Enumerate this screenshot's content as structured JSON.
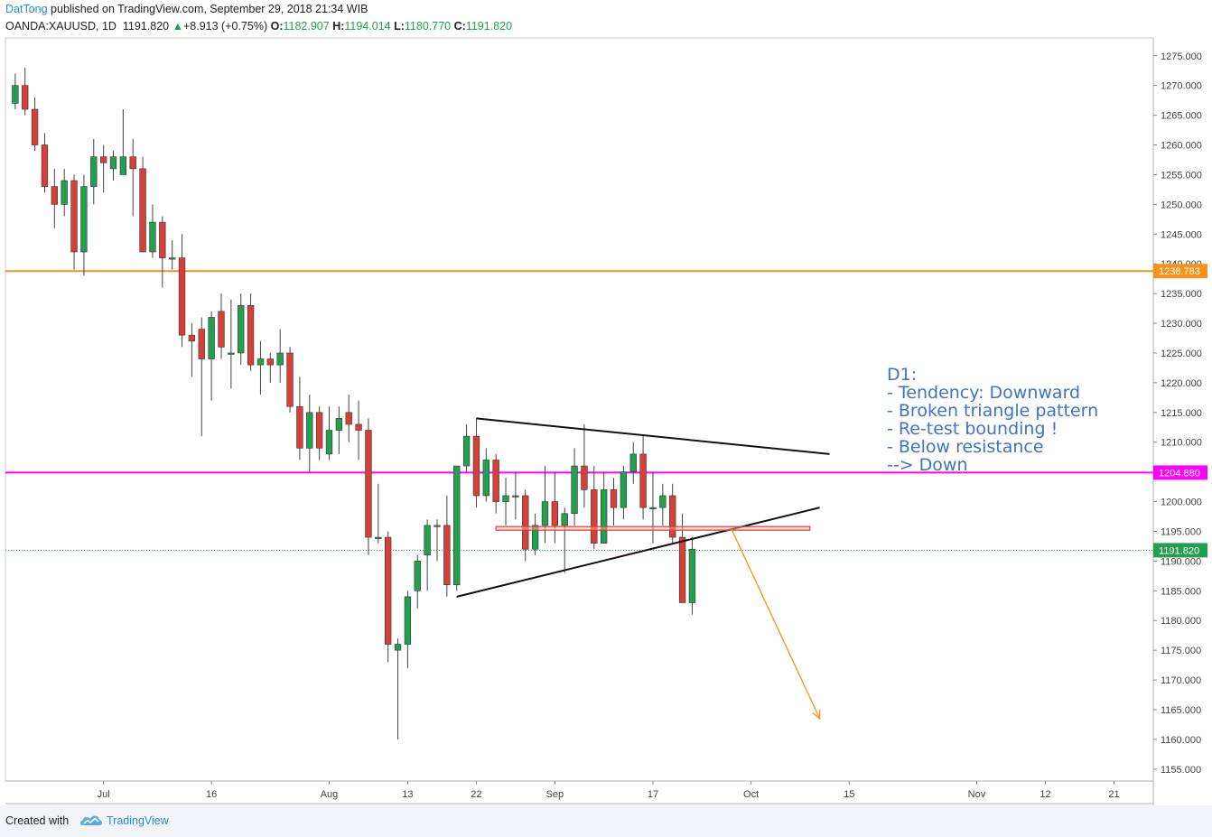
{
  "header": {
    "author": "DatTong",
    "published": " published on TradingView.com, September 29, 2018 21:34 WIB",
    "symbol": "OANDA:XAUUSD, 1D",
    "last": "1191.820",
    "change": "+8.913 (+0.75%)",
    "o_label": "O:",
    "o": "1182.907",
    "h_label": "H:",
    "h": "1194.014",
    "l_label": "L:",
    "l": "1180.770",
    "c_label": "C:",
    "c": "1191.820"
  },
  "footer": {
    "created": "Created with",
    "brand": "TradingView"
  },
  "annotation": {
    "lines": [
      "D1:",
      "- Tendency: Downward",
      "- Broken triangle pattern",
      "- Re-test bounding !",
      "- Below resistance",
      "--> Down"
    ],
    "color": "#3d73c6"
  },
  "colors": {
    "up": "#22a050",
    "down": "#d6403a",
    "orange_line": "#f7931a",
    "magenta_line": "#ff00ff",
    "last_price": "#22a050"
  },
  "chart_data": {
    "type": "candlestick",
    "title": "",
    "ylim": [
      1153,
      1278
    ],
    "y_ticks": [
      1155,
      1160,
      1165,
      1170,
      1175,
      1180,
      1185,
      1190,
      1195,
      1200,
      1205,
      1210,
      1215,
      1220,
      1225,
      1230,
      1235,
      1240,
      1245,
      1250,
      1255,
      1260,
      1265,
      1270,
      1275
    ],
    "x_ticks": [
      {
        "label": "Jul",
        "x": 9
      },
      {
        "label": "16",
        "x": 20
      },
      {
        "label": "Aug",
        "x": 32
      },
      {
        "label": "13",
        "x": 40
      },
      {
        "label": "22",
        "x": 47
      },
      {
        "label": "Sep",
        "x": 55
      },
      {
        "label": "17",
        "x": 65
      },
      {
        "label": "Oct",
        "x": 75
      },
      {
        "label": "15",
        "x": 85
      },
      {
        "label": "Nov",
        "x": 98
      },
      {
        "label": "12",
        "x": 105
      },
      {
        "label": "21",
        "x": 112
      }
    ],
    "x_range": [
      -1,
      116
    ],
    "candles": [
      {
        "x": 0,
        "o": 1267,
        "h": 1272,
        "l": 1266,
        "c": 1270
      },
      {
        "x": 1,
        "o": 1270,
        "h": 1273,
        "l": 1265,
        "c": 1266
      },
      {
        "x": 2,
        "o": 1266,
        "h": 1268,
        "l": 1259,
        "c": 1260
      },
      {
        "x": 3,
        "o": 1260,
        "h": 1262,
        "l": 1252,
        "c": 1253
      },
      {
        "x": 4,
        "o": 1253,
        "h": 1256,
        "l": 1246,
        "c": 1250
      },
      {
        "x": 5,
        "o": 1250,
        "h": 1256,
        "l": 1248,
        "c": 1254
      },
      {
        "x": 6,
        "o": 1254,
        "h": 1255,
        "l": 1239,
        "c": 1242
      },
      {
        "x": 7,
        "o": 1242,
        "h": 1255,
        "l": 1238,
        "c": 1253
      },
      {
        "x": 8,
        "o": 1253,
        "h": 1261,
        "l": 1250,
        "c": 1258
      },
      {
        "x": 9,
        "o": 1258,
        "h": 1260,
        "l": 1252,
        "c": 1257
      },
      {
        "x": 10,
        "o": 1256,
        "h": 1259,
        "l": 1254,
        "c": 1258
      },
      {
        "x": 11,
        "o": 1255,
        "h": 1266,
        "l": 1255,
        "c": 1258
      },
      {
        "x": 12,
        "o": 1258,
        "h": 1261,
        "l": 1248,
        "c": 1256
      },
      {
        "x": 13,
        "o": 1256,
        "h": 1258,
        "l": 1242,
        "c": 1242
      },
      {
        "x": 14,
        "o": 1242,
        "h": 1250,
        "l": 1241,
        "c": 1247
      },
      {
        "x": 15,
        "o": 1247,
        "h": 1248,
        "l": 1236,
        "c": 1241
      },
      {
        "x": 16,
        "o": 1241,
        "h": 1244,
        "l": 1239,
        "c": 1241
      },
      {
        "x": 17,
        "o": 1241,
        "h": 1245,
        "l": 1226,
        "c": 1228
      },
      {
        "x": 18,
        "o": 1228,
        "h": 1230,
        "l": 1221,
        "c": 1227
      },
      {
        "x": 19,
        "o": 1229,
        "h": 1231,
        "l": 1211,
        "c": 1224
      },
      {
        "x": 20,
        "o": 1224,
        "h": 1232,
        "l": 1217,
        "c": 1231
      },
      {
        "x": 21,
        "o": 1232,
        "h": 1235,
        "l": 1224,
        "c": 1226
      },
      {
        "x": 22,
        "o": 1225,
        "h": 1234,
        "l": 1219,
        "c": 1225
      },
      {
        "x": 23,
        "o": 1225,
        "h": 1235,
        "l": 1223,
        "c": 1233
      },
      {
        "x": 24,
        "o": 1233,
        "h": 1235,
        "l": 1222,
        "c": 1223
      },
      {
        "x": 25,
        "o": 1223,
        "h": 1227,
        "l": 1218,
        "c": 1224
      },
      {
        "x": 26,
        "o": 1224,
        "h": 1225,
        "l": 1220,
        "c": 1223
      },
      {
        "x": 27,
        "o": 1223,
        "h": 1229,
        "l": 1220,
        "c": 1225
      },
      {
        "x": 28,
        "o": 1225,
        "h": 1226,
        "l": 1215,
        "c": 1216
      },
      {
        "x": 29,
        "o": 1216,
        "h": 1221,
        "l": 1207,
        "c": 1209
      },
      {
        "x": 30,
        "o": 1209,
        "h": 1218,
        "l": 1205,
        "c": 1215
      },
      {
        "x": 31,
        "o": 1215,
        "h": 1216,
        "l": 1207,
        "c": 1209
      },
      {
        "x": 32,
        "o": 1208,
        "h": 1216,
        "l": 1207,
        "c": 1212
      },
      {
        "x": 33,
        "o": 1212,
        "h": 1216,
        "l": 1208,
        "c": 1214
      },
      {
        "x": 34,
        "o": 1215,
        "h": 1218,
        "l": 1210,
        "c": 1213
      },
      {
        "x": 35,
        "o": 1213,
        "h": 1217,
        "l": 1207,
        "c": 1212
      },
      {
        "x": 36,
        "o": 1212,
        "h": 1214,
        "l": 1191,
        "c": 1194
      },
      {
        "x": 37,
        "o": 1194,
        "h": 1203,
        "l": 1193,
        "c": 1194
      },
      {
        "x": 38,
        "o": 1194,
        "h": 1195,
        "l": 1173,
        "c": 1176
      },
      {
        "x": 39,
        "o": 1175,
        "h": 1177,
        "l": 1160,
        "c": 1176
      },
      {
        "x": 40,
        "o": 1176,
        "h": 1185,
        "l": 1172,
        "c": 1184
      },
      {
        "x": 41,
        "o": 1185,
        "h": 1191,
        "l": 1182,
        "c": 1190
      },
      {
        "x": 42,
        "o": 1191,
        "h": 1197,
        "l": 1185,
        "c": 1196
      },
      {
        "x": 43,
        "o": 1196,
        "h": 1197,
        "l": 1190,
        "c": 1196
      },
      {
        "x": 44,
        "o": 1196,
        "h": 1201,
        "l": 1184,
        "c": 1186
      },
      {
        "x": 45,
        "o": 1186,
        "h": 1206,
        "l": 1185,
        "c": 1206
      },
      {
        "x": 46,
        "o": 1206,
        "h": 1213,
        "l": 1205,
        "c": 1211
      },
      {
        "x": 47,
        "o": 1211,
        "h": 1214,
        "l": 1199,
        "c": 1201
      },
      {
        "x": 48,
        "o": 1201,
        "h": 1209,
        "l": 1200,
        "c": 1207
      },
      {
        "x": 49,
        "o": 1207,
        "h": 1208,
        "l": 1198,
        "c": 1200
      },
      {
        "x": 50,
        "o": 1200,
        "h": 1204,
        "l": 1196,
        "c": 1201
      },
      {
        "x": 51,
        "o": 1201,
        "h": 1205,
        "l": 1197,
        "c": 1201
      },
      {
        "x": 52,
        "o": 1201,
        "h": 1202,
        "l": 1190,
        "c": 1192
      },
      {
        "x": 53,
        "o": 1192,
        "h": 1198,
        "l": 1191,
        "c": 1196
      },
      {
        "x": 54,
        "o": 1196,
        "h": 1206,
        "l": 1193,
        "c": 1200
      },
      {
        "x": 55,
        "o": 1200,
        "h": 1205,
        "l": 1193,
        "c": 1196
      },
      {
        "x": 56,
        "o": 1196,
        "h": 1199,
        "l": 1188,
        "c": 1198
      },
      {
        "x": 57,
        "o": 1198,
        "h": 1209,
        "l": 1196,
        "c": 1206
      },
      {
        "x": 58,
        "o": 1206,
        "h": 1213,
        "l": 1199,
        "c": 1202
      },
      {
        "x": 59,
        "o": 1202,
        "h": 1206,
        "l": 1192,
        "c": 1193
      },
      {
        "x": 60,
        "o": 1193,
        "h": 1205,
        "l": 1193,
        "c": 1202
      },
      {
        "x": 61,
        "o": 1202,
        "h": 1204,
        "l": 1196,
        "c": 1199
      },
      {
        "x": 62,
        "o": 1199,
        "h": 1206,
        "l": 1197,
        "c": 1205
      },
      {
        "x": 63,
        "o": 1205,
        "h": 1210,
        "l": 1203,
        "c": 1208
      },
      {
        "x": 64,
        "o": 1208,
        "h": 1211,
        "l": 1197,
        "c": 1199
      },
      {
        "x": 65,
        "o": 1199,
        "h": 1205,
        "l": 1193,
        "c": 1199
      },
      {
        "x": 66,
        "o": 1199,
        "h": 1203,
        "l": 1196,
        "c": 1201
      },
      {
        "x": 67,
        "o": 1201,
        "h": 1203,
        "l": 1193,
        "c": 1194
      },
      {
        "x": 68,
        "o": 1194,
        "h": 1198,
        "l": 1183,
        "c": 1183
      },
      {
        "x": 69,
        "o": 1183,
        "h": 1194,
        "l": 1181,
        "c": 1192
      }
    ],
    "horizontal_lines": [
      {
        "value": 1238.783,
        "label": "1238.783",
        "color": "#f7931a"
      },
      {
        "value": 1204.88,
        "label": "1204.880",
        "color": "#ff00ff"
      }
    ],
    "last_price": {
      "value": 1191.82,
      "label": "1191.820"
    },
    "trendlines": [
      {
        "from": [
          47,
          1214
        ],
        "to": [
          83,
          1208
        ]
      },
      {
        "from": [
          45,
          1184
        ],
        "to": [
          82,
          1199
        ]
      }
    ],
    "resistance_box": {
      "x1": 49,
      "x2": 81,
      "y1": 1195.2,
      "y2": 1195.8
    },
    "projection_arrow": {
      "from": [
        73,
        1195.4
      ],
      "to": [
        82,
        1163.5
      ]
    }
  }
}
